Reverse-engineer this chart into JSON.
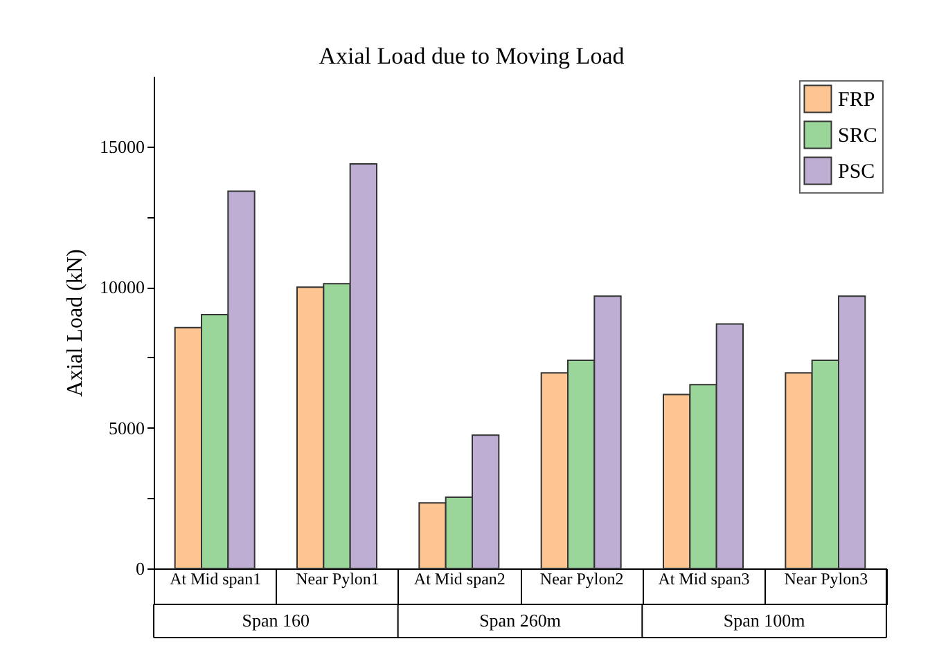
{
  "chart_data": {
    "type": "bar",
    "title": "Axial Load due to Moving Load",
    "ylabel": "Axial Load (kN)",
    "categories": [
      "At Mid span1",
      "Near Pylon1",
      "At Mid span2",
      "Near Pylon2",
      "At Mid span3",
      "Near Pylon3"
    ],
    "annotations": [
      "Span 160",
      "Span 260m",
      "Span 100m"
    ],
    "series": [
      {
        "name": "FRP",
        "color": "#fdc592",
        "values": [
          8560,
          10000,
          2330,
          6950,
          6180,
          6950
        ]
      },
      {
        "name": "SRC",
        "color": "#9ad59a",
        "values": [
          9020,
          10120,
          2530,
          7400,
          6530,
          7400
        ]
      },
      {
        "name": "PSC",
        "color": "#bfaed4",
        "values": [
          13410,
          14380,
          4740,
          9680,
          8690,
          9680
        ]
      }
    ],
    "ylim": [
      0,
      17500
    ],
    "yticks": [
      0,
      {
        "value": 2500,
        "label": null
      },
      5000,
      {
        "value": 7500,
        "label": null
      },
      10000,
      {
        "value": 12500,
        "label": null
      },
      15000
    ],
    "grid": false,
    "legend": "top right"
  }
}
